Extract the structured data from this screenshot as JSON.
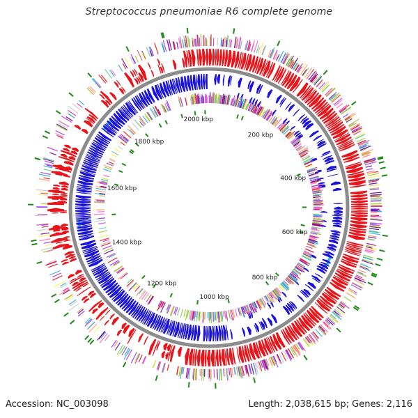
{
  "title": "Streptococcus pneumoniae R6 complete genome",
  "footer": {
    "accession": "Accession: NC_003098",
    "length_genes": "Length: 2,038,615 bp; Genes: 2,116"
  },
  "genome": {
    "length_bp": 2038615,
    "gene_count": 2116
  },
  "scale_labels": [
    {
      "text": "200 kbp",
      "bp": 200000
    },
    {
      "text": "400 kbp",
      "bp": 400000
    },
    {
      "text": "600 kbp",
      "bp": 600000
    },
    {
      "text": "800 kbp",
      "bp": 800000
    },
    {
      "text": "1000 kbp",
      "bp": 1000000
    },
    {
      "text": "1200 kbp",
      "bp": 1200000
    },
    {
      "text": "1400 kbp",
      "bp": 1400000
    },
    {
      "text": "1600 kbp",
      "bp": 1600000
    },
    {
      "text": "1800 kbp",
      "bp": 1800000
    },
    {
      "text": "2000 kbp",
      "bp": 2000000
    }
  ],
  "colors": {
    "forward_strand": "#e8151b",
    "reverse_strand": "#1b13d9",
    "backbone": "#8c8c8c",
    "backbone_highlight": "#3fb6e6",
    "rna_marks": "#1e8a16",
    "cog_palette": [
      "#e8151b",
      "#cc33cc",
      "#ff66cc",
      "#99cc33",
      "#ffee55",
      "#66cc99",
      "#33aadd",
      "#9933ff",
      "#ff9966",
      "#cccccc",
      "#660099"
    ]
  }
}
